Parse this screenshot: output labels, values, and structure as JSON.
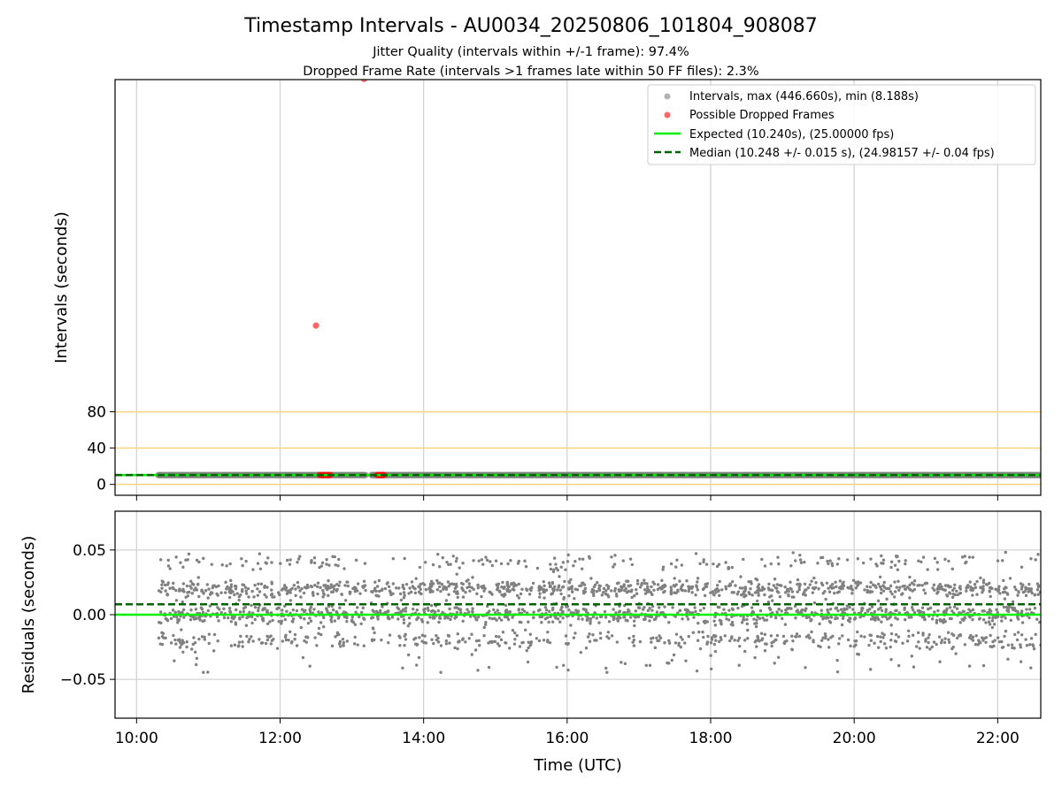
{
  "chart_data": {
    "type": "scatter",
    "title": "Timestamp Intervals - AU0034_20250806_101804_908087",
    "subtitle_lines": [
      "Jitter Quality (intervals within +/-1 frame): 97.4%",
      "Dropped Frame Rate (intervals >1 frames late within 50 FF files): 2.3%"
    ],
    "xlabel": "Time (UTC)",
    "x_tick_labels": [
      "10:00",
      "12:00",
      "14:00",
      "16:00",
      "18:00",
      "20:00",
      "22:00"
    ],
    "x_range_hours": [
      9.7,
      22.6
    ],
    "grid": true,
    "legend_placement": "upper right",
    "top_panel": {
      "ylabel": "Intervals (seconds)",
      "ylim": [
        -12,
        446
      ],
      "y_ticks": [
        "0",
        "40",
        "80"
      ],
      "y_tick_values": [
        0,
        40,
        80
      ],
      "reference_lines": [
        0,
        40,
        80
      ],
      "reference_line_color": "#ffd27f",
      "interval_series": {
        "name": "Intervals, max (446.660s), min (8.188s)",
        "color": "#808080",
        "x_start_hour": 10.3,
        "x_end_hour": 22.6,
        "typical_value": 10.25,
        "gap_hours": [
          [
            13.2,
            13.27
          ]
        ]
      },
      "dropped_frames": {
        "name": "Possible Dropped Frames",
        "color": "#ff0000",
        "points": [
          {
            "x_hour": 13.17,
            "y": 446.66
          },
          {
            "x_hour": 12.5,
            "y": 175.0
          }
        ],
        "cluster_ranges_hours": [
          [
            12.55,
            12.7
          ],
          [
            13.35,
            13.45
          ]
        ],
        "cluster_value": 10.3
      },
      "expected": {
        "name": "Expected (10.240s), (25.00000 fps)",
        "value": 10.24,
        "color": "#00ee00"
      },
      "median": {
        "name": "Median (10.248 +/- 0.015 s), (24.98157 +/- 0.04 fps)",
        "value": 10.248,
        "color": "#006400"
      }
    },
    "bottom_panel": {
      "ylabel": "Residuals (seconds)",
      "ylim": [
        -0.08,
        0.08
      ],
      "y_ticks": [
        "−0.05",
        "0.00",
        "0.05"
      ],
      "y_tick_values": [
        -0.05,
        0.0,
        0.05
      ],
      "residual_color": "#808080",
      "residual_levels": [
        0.02,
        0.0,
        -0.02,
        0.04
      ],
      "expected_residual": 0.0,
      "median_residual": 0.008,
      "x_start_hour": 10.3,
      "x_end_hour": 22.6
    }
  }
}
